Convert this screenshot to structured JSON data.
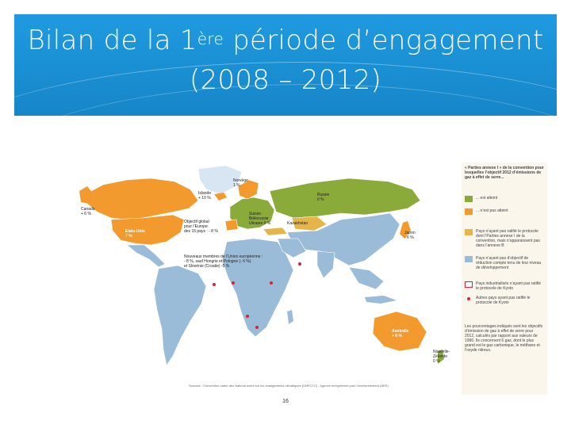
{
  "slide": {
    "title_part1": "Bilan de la 1",
    "title_sup": "ère",
    "title_part2": " période d’engagement",
    "title_line2": "(2008 – 2012)",
    "page_number": "16"
  },
  "map": {
    "labels": {
      "canada": "Canada\n+ 6 %",
      "usa": "Etats-Unis\n7 %",
      "islande": "Islande\n+ 10 %",
      "norvege": "Norvège\n1 %",
      "russie": "Russie\n0 %",
      "japon": "Japon\n- 6 %",
      "australie": "Australie\n+ 8 %",
      "nz": "Nouvelle-\nZélande\n0 %",
      "europe_block": "Objectif global\npour l’Europe\ndes 15 pays : - 8 %",
      "nouveaux": "Nouveaux membres de l’Union européenne :\n- 8 %, sauf Hongrie et Pologne (- 6 %)\net Slovénie (Croatie) -5 %",
      "europe_small": "Suisse\nBiélorussie\nUkraine 0 %",
      "kazakhstan": "Kazakhstan"
    },
    "source": "Sources : Convention-cadre des Nations unies sur les changements climatiques (UNFCCC) ; Agence européenne pour l’environnement (AEE)."
  },
  "legend": {
    "heading": "« Parties annexe I » de la convention pour lesquelles l’objectif 2012 d’émissions de gaz à effet de serre...",
    "items": [
      {
        "label": "... est atteint",
        "color": "#8aaa3a"
      },
      {
        "label": "... n’est pas atteint",
        "color": "#f39a2e"
      },
      {
        "label": "Pays n’ayant pas ratifié le protocole dont l’Parties annexe I de la convention, mais n’apparaissent pas dans l’annexe B",
        "color": "#e6b54a"
      },
      {
        "label": "Pays n’ayant pas d’objectif de réduction compte tenu de leur niveau de développement",
        "color": "#9bbcd9"
      },
      {
        "label": "Pays industrialisés n’ayant pas ratifié le protocole de Kyoto",
        "color": "#ffffff"
      },
      {
        "label": "Autres pays ayant pas ratifié le protocole de Kyoto",
        "color": "#d9203a"
      }
    ],
    "note": "Les pourcentages indiqués sont les objectifs d’émission de gaz à effet de serre pour 2012, calculés par rapport aux valeurs de 1990. Ils concernent 6 gaz, dont le plus grand est le gaz carbonique, le méthane et l’oxyde nitreux."
  }
}
